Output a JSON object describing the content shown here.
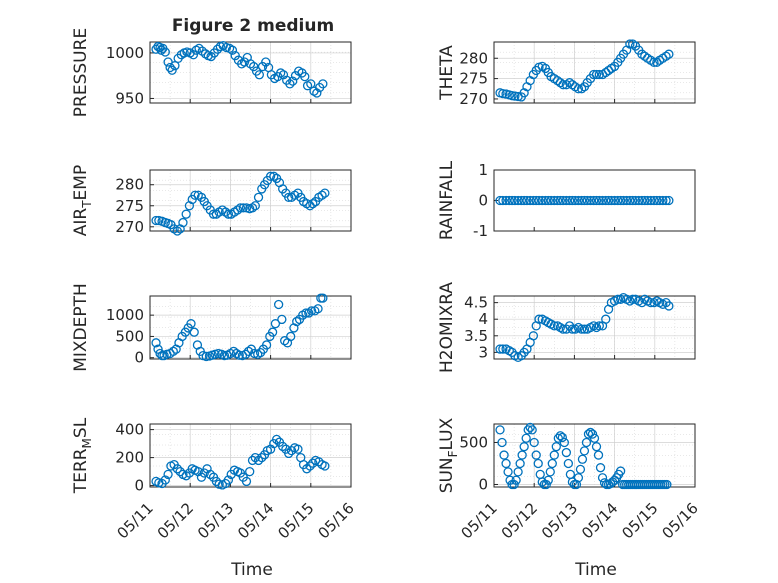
{
  "figure": {
    "title": "Figure 2 medium"
  },
  "colors": {
    "marker": "#0072BD",
    "axis": "#262626",
    "grid": "#d0d0d0",
    "background": "#ffffff"
  },
  "chart_data": [
    {
      "type": "scatter",
      "ylabel": "PRESSURE",
      "ylim": [
        945,
        1012
      ],
      "yticks": [
        950,
        1000
      ],
      "x_range": [
        "05/11",
        "05/16"
      ],
      "grid": "on",
      "x": [
        0.15,
        0.2,
        0.25,
        0.28,
        0.32,
        0.38,
        0.45,
        0.5,
        0.55,
        0.62,
        0.7,
        0.78,
        0.85,
        0.92,
        1.0,
        1.08,
        1.15,
        1.22,
        1.3,
        1.38,
        1.45,
        1.52,
        1.6,
        1.68,
        1.75,
        1.82,
        1.9,
        1.98,
        2.05,
        2.12,
        2.2,
        2.28,
        2.35,
        2.42,
        2.5,
        2.58,
        2.65,
        2.72,
        2.8,
        2.88,
        2.95,
        3.02,
        3.1,
        3.18,
        3.25,
        3.32,
        3.4,
        3.48,
        3.55,
        3.62,
        3.7,
        3.78,
        3.85,
        3.92,
        4.0,
        4.08,
        4.15,
        4.22,
        4.3
      ],
      "y": [
        1004,
        1007,
        1006,
        1003,
        1005,
        1001,
        990,
        984,
        981,
        986,
        994,
        998,
        1000,
        1001,
        1000,
        998,
        1003,
        1005,
        1002,
        999,
        997,
        996,
        1000,
        1004,
        1007,
        1008,
        1006,
        1005,
        1003,
        997,
        992,
        988,
        990,
        995,
        988,
        985,
        980,
        976,
        985,
        990,
        984,
        976,
        972,
        974,
        978,
        976,
        970,
        966,
        969,
        975,
        980,
        978,
        974,
        964,
        966,
        958,
        956,
        962,
        966
      ],
      "series": [
        {
          "name": "",
          "values": []
        }
      ]
    },
    {
      "type": "scatter",
      "ylabel": "THETA",
      "ylim": [
        269,
        284
      ],
      "yticks": [
        270,
        275,
        280
      ],
      "x_range": [
        "05/11",
        "05/16"
      ],
      "grid": "on",
      "x": [
        0.15,
        0.22,
        0.3,
        0.38,
        0.45,
        0.52,
        0.6,
        0.68,
        0.75,
        0.82,
        0.9,
        0.98,
        1.05,
        1.12,
        1.2,
        1.28,
        1.35,
        1.42,
        1.5,
        1.58,
        1.65,
        1.72,
        1.8,
        1.88,
        1.95,
        2.02,
        2.1,
        2.18,
        2.25,
        2.32,
        2.4,
        2.48,
        2.55,
        2.62,
        2.7,
        2.78,
        2.85,
        2.92,
        3.0,
        3.08,
        3.15,
        3.22,
        3.3,
        3.38,
        3.45,
        3.52,
        3.6,
        3.68,
        3.75,
        3.82,
        3.9,
        3.98,
        4.05,
        4.12,
        4.2,
        4.28,
        4.35
      ],
      "y": [
        271.5,
        271.3,
        271.2,
        271.0,
        270.8,
        270.7,
        270.6,
        270.5,
        271.5,
        273,
        274.5,
        276,
        277,
        277.8,
        278,
        277.5,
        276.5,
        275.5,
        275,
        274.5,
        274,
        273.5,
        273.5,
        274,
        273.5,
        273,
        272.5,
        272.5,
        273,
        274,
        275,
        276,
        276,
        276,
        276,
        276.5,
        277,
        277.5,
        278,
        279,
        280,
        281,
        282,
        283.5,
        283.5,
        283,
        282,
        281,
        280.5,
        280,
        279.5,
        279,
        279,
        279.5,
        280,
        280.5,
        281
      ],
      "series": [
        {
          "name": "",
          "values": []
        }
      ]
    },
    {
      "type": "scatter",
      "ylabel": "AIR_TEMP",
      "ylim": [
        269,
        283.5
      ],
      "yticks": [
        270,
        275,
        280
      ],
      "x_range": [
        "05/11",
        "05/16"
      ],
      "grid": "on",
      "x": [
        0.15,
        0.22,
        0.3,
        0.38,
        0.45,
        0.52,
        0.6,
        0.68,
        0.75,
        0.82,
        0.9,
        0.98,
        1.05,
        1.12,
        1.2,
        1.28,
        1.35,
        1.42,
        1.5,
        1.58,
        1.65,
        1.72,
        1.8,
        1.88,
        1.95,
        2.02,
        2.1,
        2.18,
        2.25,
        2.32,
        2.4,
        2.48,
        2.55,
        2.62,
        2.7,
        2.78,
        2.85,
        2.92,
        3.0,
        3.08,
        3.15,
        3.22,
        3.3,
        3.38,
        3.45,
        3.52,
        3.6,
        3.68,
        3.75,
        3.82,
        3.9,
        3.98,
        4.05,
        4.12,
        4.2,
        4.28,
        4.35
      ],
      "y": [
        271.5,
        271.5,
        271.3,
        271,
        270.8,
        270.5,
        269.5,
        269,
        269.5,
        271,
        273,
        275,
        276.5,
        277.5,
        277.5,
        277,
        276,
        275,
        274,
        273,
        273,
        273.5,
        274,
        273.5,
        273,
        273,
        273.5,
        274,
        274.5,
        274.5,
        274.5,
        274.3,
        274.5,
        275,
        277,
        279,
        280,
        281,
        282,
        282,
        281.5,
        280.5,
        279,
        278,
        277,
        277,
        277.5,
        278,
        277,
        276,
        275.5,
        275,
        275.5,
        276,
        277,
        277.5,
        278
      ],
      "series": [
        {
          "name": "",
          "values": []
        }
      ]
    },
    {
      "type": "scatter",
      "ylabel": "RAINFALL",
      "ylim": [
        -1,
        1
      ],
      "yticks": [
        -1,
        0,
        1
      ],
      "x_range": [
        "05/11",
        "05/16"
      ],
      "grid": "off",
      "x": [
        0.15,
        0.22,
        0.3,
        0.38,
        0.45,
        0.52,
        0.6,
        0.68,
        0.75,
        0.82,
        0.9,
        0.98,
        1.05,
        1.12,
        1.2,
        1.28,
        1.35,
        1.42,
        1.5,
        1.58,
        1.65,
        1.72,
        1.8,
        1.88,
        1.95,
        2.02,
        2.1,
        2.18,
        2.25,
        2.32,
        2.4,
        2.48,
        2.55,
        2.62,
        2.7,
        2.78,
        2.85,
        2.92,
        3.0,
        3.08,
        3.15,
        3.22,
        3.3,
        3.38,
        3.45,
        3.52,
        3.6,
        3.68,
        3.75,
        3.82,
        3.9,
        3.98,
        4.05,
        4.12,
        4.2,
        4.28,
        4.35
      ],
      "y": [
        0,
        0,
        0,
        0,
        0,
        0,
        0,
        0,
        0,
        0,
        0,
        0,
        0,
        0,
        0,
        0,
        0,
        0,
        0,
        0,
        0,
        0,
        0,
        0,
        0,
        0,
        0,
        0,
        0,
        0,
        0,
        0,
        0,
        0,
        0,
        0,
        0,
        0,
        0,
        0,
        0,
        0,
        0,
        0,
        0,
        0,
        0,
        0,
        0,
        0,
        0,
        0,
        0,
        0,
        0,
        0,
        0
      ],
      "series": [
        {
          "name": "",
          "values": []
        }
      ]
    },
    {
      "type": "scatter",
      "ylabel": "MIXDEPTH",
      "ylim": [
        -30,
        1450
      ],
      "yticks": [
        0,
        500,
        1000
      ],
      "x_range": [
        "05/11",
        "05/16"
      ],
      "grid": "on",
      "x": [
        0.15,
        0.2,
        0.25,
        0.3,
        0.35,
        0.42,
        0.5,
        0.58,
        0.65,
        0.72,
        0.8,
        0.88,
        0.95,
        1.02,
        1.1,
        1.18,
        1.25,
        1.32,
        1.4,
        1.48,
        1.55,
        1.62,
        1.7,
        1.78,
        1.85,
        1.92,
        2.0,
        2.08,
        2.15,
        2.22,
        2.3,
        2.38,
        2.45,
        2.52,
        2.6,
        2.68,
        2.75,
        2.82,
        2.9,
        2.98,
        3.05,
        3.12,
        3.2,
        3.28,
        3.35,
        3.42,
        3.5,
        3.58,
        3.65,
        3.72,
        3.8,
        3.88,
        3.95,
        4.02,
        4.1,
        4.18,
        4.25,
        4.3
      ],
      "y": [
        350,
        200,
        100,
        50,
        50,
        80,
        100,
        150,
        200,
        350,
        500,
        600,
        700,
        800,
        600,
        300,
        150,
        50,
        30,
        40,
        60,
        80,
        100,
        80,
        50,
        60,
        100,
        150,
        100,
        60,
        50,
        80,
        150,
        200,
        100,
        80,
        120,
        200,
        300,
        500,
        600,
        800,
        1250,
        900,
        400,
        350,
        500,
        700,
        850,
        900,
        1000,
        1050,
        1050,
        1100,
        1100,
        1150,
        1400,
        1400
      ],
      "series": [
        {
          "name": "",
          "values": []
        }
      ]
    },
    {
      "type": "scatter",
      "ylabel": "H2OMIXRA",
      "ylim": [
        2.8,
        4.7
      ],
      "yticks": [
        3,
        3.5,
        4,
        4.5
      ],
      "x_range": [
        "05/11",
        "05/16"
      ],
      "grid": "on",
      "x": [
        0.15,
        0.22,
        0.3,
        0.38,
        0.45,
        0.52,
        0.6,
        0.68,
        0.75,
        0.82,
        0.9,
        0.98,
        1.05,
        1.12,
        1.2,
        1.28,
        1.35,
        1.42,
        1.5,
        1.58,
        1.65,
        1.72,
        1.8,
        1.88,
        1.95,
        2.02,
        2.1,
        2.18,
        2.25,
        2.32,
        2.4,
        2.48,
        2.55,
        2.62,
        2.7,
        2.78,
        2.85,
        2.92,
        3.0,
        3.08,
        3.15,
        3.22,
        3.3,
        3.38,
        3.45,
        3.52,
        3.6,
        3.68,
        3.75,
        3.82,
        3.9,
        3.98,
        4.05,
        4.12,
        4.2,
        4.28,
        4.35
      ],
      "y": [
        3.1,
        3.1,
        3.1,
        3.05,
        3.0,
        2.9,
        2.85,
        2.9,
        3.0,
        3.1,
        3.3,
        3.5,
        3.8,
        4.0,
        4.0,
        3.95,
        3.9,
        3.85,
        3.8,
        3.8,
        3.75,
        3.7,
        3.7,
        3.8,
        3.7,
        3.7,
        3.75,
        3.7,
        3.7,
        3.7,
        3.75,
        3.8,
        3.75,
        3.8,
        3.8,
        4.0,
        4.3,
        4.5,
        4.55,
        4.6,
        4.6,
        4.65,
        4.6,
        4.55,
        4.6,
        4.6,
        4.55,
        4.5,
        4.6,
        4.55,
        4.5,
        4.5,
        4.55,
        4.5,
        4.45,
        4.5,
        4.4
      ],
      "series": [
        {
          "name": "",
          "values": []
        }
      ]
    },
    {
      "type": "scatter",
      "ylabel": "TERR_MSL",
      "ylim": [
        -10,
        440
      ],
      "yticks": [
        0,
        200,
        400
      ],
      "x_range": [
        "05/11",
        "05/16"
      ],
      "grid": "on",
      "x": [
        0.15,
        0.22,
        0.3,
        0.38,
        0.45,
        0.52,
        0.6,
        0.68,
        0.75,
        0.82,
        0.9,
        0.98,
        1.05,
        1.12,
        1.2,
        1.28,
        1.35,
        1.42,
        1.5,
        1.58,
        1.65,
        1.72,
        1.8,
        1.88,
        1.95,
        2.02,
        2.1,
        2.18,
        2.25,
        2.32,
        2.4,
        2.48,
        2.55,
        2.62,
        2.7,
        2.78,
        2.85,
        2.92,
        3.0,
        3.08,
        3.15,
        3.22,
        3.3,
        3.38,
        3.45,
        3.52,
        3.6,
        3.68,
        3.75,
        3.82,
        3.9,
        3.98,
        4.05,
        4.12,
        4.2,
        4.28,
        4.35
      ],
      "y": [
        30,
        20,
        15,
        40,
        80,
        140,
        150,
        120,
        100,
        80,
        70,
        90,
        120,
        110,
        100,
        60,
        90,
        120,
        80,
        60,
        30,
        10,
        5,
        15,
        40,
        80,
        110,
        100,
        90,
        60,
        30,
        100,
        180,
        200,
        180,
        200,
        220,
        250,
        260,
        300,
        330,
        310,
        280,
        260,
        230,
        250,
        270,
        260,
        200,
        150,
        120,
        140,
        160,
        180,
        170,
        150,
        140
      ],
      "series": [
        {
          "name": "",
          "values": []
        }
      ]
    },
    {
      "type": "scatter",
      "ylabel": "SUN_FLUX",
      "ylim": [
        -30,
        720
      ],
      "yticks": [
        0,
        500
      ],
      "x_range": [
        "05/11",
        "05/16"
      ],
      "grid": "on",
      "x": [
        0.15,
        0.2,
        0.25,
        0.3,
        0.35,
        0.4,
        0.45,
        0.5,
        0.55,
        0.6,
        0.65,
        0.7,
        0.75,
        0.8,
        0.85,
        0.9,
        0.95,
        1.0,
        1.05,
        1.1,
        1.15,
        1.2,
        1.25,
        1.3,
        1.35,
        1.4,
        1.45,
        1.5,
        1.55,
        1.6,
        1.65,
        1.7,
        1.75,
        1.8,
        1.85,
        1.9,
        1.95,
        2.0,
        2.05,
        2.1,
        2.15,
        2.2,
        2.25,
        2.3,
        2.35,
        2.4,
        2.45,
        2.5,
        2.55,
        2.6,
        2.65,
        2.7,
        2.75,
        2.8,
        2.85,
        2.9,
        2.95,
        3.0,
        3.05,
        3.1,
        3.15,
        3.2,
        3.25,
        3.3,
        3.35,
        3.4,
        3.45,
        3.5,
        3.55,
        3.6,
        3.65,
        3.7,
        3.75,
        3.8,
        3.85,
        3.9,
        3.95,
        4.0,
        4.05,
        4.1,
        4.15,
        4.2,
        4.25,
        4.3
      ],
      "y": [
        650,
        500,
        350,
        250,
        150,
        50,
        0,
        0,
        50,
        150,
        250,
        350,
        450,
        550,
        650,
        680,
        650,
        500,
        350,
        250,
        120,
        30,
        0,
        0,
        50,
        150,
        250,
        350,
        450,
        550,
        580,
        560,
        500,
        380,
        250,
        120,
        30,
        0,
        0,
        80,
        180,
        300,
        400,
        500,
        600,
        620,
        600,
        550,
        450,
        350,
        200,
        80,
        20,
        0,
        0,
        10,
        30,
        50,
        80,
        120,
        160,
        0,
        0,
        0,
        0,
        0,
        0,
        0,
        0,
        0,
        0,
        0,
        0,
        0,
        0,
        0,
        0,
        0,
        0,
        0,
        0,
        0,
        0,
        0
      ],
      "series": [
        {
          "name": "",
          "values": []
        }
      ]
    }
  ],
  "x_axis": {
    "ticks": [
      "05/11",
      "05/12",
      "05/13",
      "05/14",
      "05/15",
      "05/16"
    ],
    "label": "Time"
  }
}
